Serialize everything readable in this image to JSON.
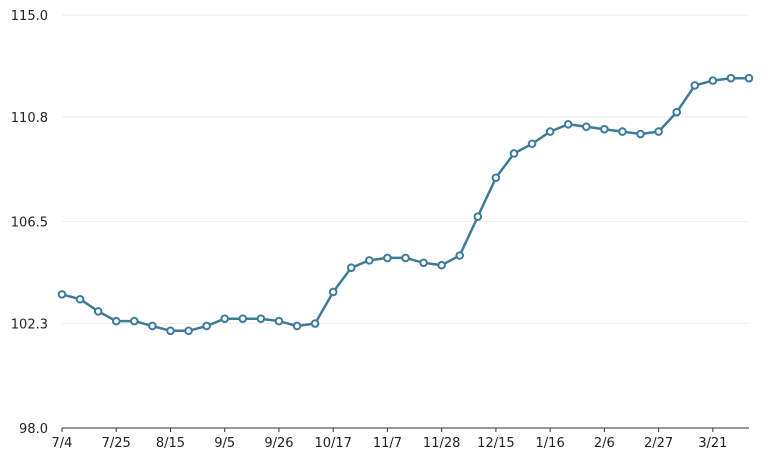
{
  "chart_data": {
    "type": "line",
    "title": "",
    "xlabel": "",
    "ylabel": "",
    "ylim": [
      98.0,
      115.0
    ],
    "y_ticks": [
      "98.0",
      "102.3",
      "106.5",
      "110.8",
      "115.0"
    ],
    "x_tick_labels": [
      "7/4",
      "7/25",
      "8/15",
      "9/5",
      "9/26",
      "10/17",
      "11/7",
      "11/28",
      "12/15",
      "1/16",
      "2/6",
      "2/27",
      "3/21"
    ],
    "grid": "horizontal",
    "color": "#3d7c98",
    "series": [
      {
        "values": [
          103.5,
          103.3,
          102.8,
          102.4,
          102.4,
          102.2,
          102.0,
          102.0,
          102.2,
          102.5,
          102.5,
          102.5,
          102.4,
          102.2,
          102.3,
          103.6,
          104.6,
          104.9,
          105.0,
          105.0,
          104.8,
          104.7,
          105.1,
          106.7,
          108.3,
          109.3,
          109.7,
          110.2,
          110.5,
          110.4,
          110.3,
          110.2,
          110.1,
          110.2,
          111.0,
          112.1,
          112.3,
          112.4,
          112.4
        ]
      }
    ]
  }
}
